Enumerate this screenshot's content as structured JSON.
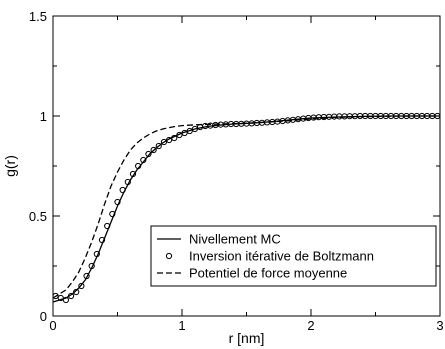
{
  "chart_data": {
    "type": "line",
    "xlabel": "r  [nm]",
    "ylabel": "g(r)",
    "xlim": [
      0,
      3
    ],
    "ylim": [
      0,
      1.5
    ],
    "x_ticks": [
      "0",
      "1",
      "2",
      "3"
    ],
    "y_ticks": [
      "0",
      "0.5",
      "1",
      "1.5"
    ],
    "grid": false,
    "legend_position": "lower-right",
    "series": [
      {
        "name": "Nivellement MC",
        "style": "solid",
        "x": [
          0,
          0.05,
          0.1,
          0.15,
          0.2,
          0.25,
          0.3,
          0.35,
          0.4,
          0.45,
          0.5,
          0.55,
          0.6,
          0.65,
          0.7,
          0.75,
          0.8,
          0.85,
          0.9,
          0.95,
          1.0,
          1.05,
          1.1,
          1.2,
          1.3,
          1.4,
          1.5,
          1.6,
          1.7,
          1.8,
          1.9,
          2.0,
          2.2,
          2.4,
          2.6,
          2.8,
          3.0
        ],
        "y": [
          0.07,
          0.08,
          0.09,
          0.11,
          0.14,
          0.18,
          0.24,
          0.31,
          0.39,
          0.47,
          0.55,
          0.62,
          0.68,
          0.73,
          0.77,
          0.81,
          0.84,
          0.865,
          0.885,
          0.9,
          0.915,
          0.925,
          0.935,
          0.948,
          0.955,
          0.96,
          0.963,
          0.967,
          0.972,
          0.978,
          0.984,
          0.99,
          0.995,
          0.998,
          1.0,
          1.0,
          1.0
        ]
      },
      {
        "name": "Inversion itérative de Boltzmann",
        "style": "circles",
        "x": [
          0.02,
          0.06,
          0.1,
          0.14,
          0.18,
          0.22,
          0.26,
          0.3,
          0.34,
          0.38,
          0.42,
          0.46,
          0.5,
          0.54,
          0.58,
          0.62,
          0.66,
          0.7,
          0.74,
          0.78,
          0.82,
          0.86,
          0.9,
          0.94,
          0.98,
          1.02,
          1.06,
          1.1,
          1.14,
          1.18,
          1.22,
          1.26,
          1.3,
          1.34,
          1.38,
          1.42,
          1.46,
          1.5,
          1.54,
          1.58,
          1.62,
          1.66,
          1.7,
          1.74,
          1.78,
          1.82,
          1.86,
          1.9,
          1.94,
          1.98,
          2.02,
          2.06,
          2.1,
          2.14,
          2.18,
          2.22,
          2.26,
          2.3,
          2.34,
          2.38,
          2.42,
          2.46,
          2.5,
          2.54,
          2.58,
          2.62,
          2.66,
          2.7,
          2.74,
          2.78,
          2.82,
          2.86,
          2.9,
          2.94,
          2.98
        ],
        "y": [
          0.1,
          0.09,
          0.08,
          0.1,
          0.12,
          0.15,
          0.2,
          0.25,
          0.31,
          0.38,
          0.45,
          0.51,
          0.57,
          0.63,
          0.67,
          0.71,
          0.75,
          0.78,
          0.81,
          0.83,
          0.85,
          0.87,
          0.88,
          0.89,
          0.905,
          0.915,
          0.925,
          0.935,
          0.945,
          0.95,
          0.952,
          0.955,
          0.957,
          0.958,
          0.96,
          0.96,
          0.961,
          0.962,
          0.963,
          0.965,
          0.966,
          0.968,
          0.97,
          0.972,
          0.975,
          0.978,
          0.981,
          0.984,
          0.987,
          0.99,
          0.992,
          0.994,
          0.995,
          0.996,
          0.997,
          0.998,
          0.998,
          0.999,
          0.999,
          1.0,
          1.0,
          1.0,
          1.0,
          1.0,
          1.0,
          1.0,
          1.0,
          1.0,
          1.0,
          1.0,
          1.0,
          1.0,
          1.0,
          1.0,
          1.0
        ]
      },
      {
        "name": "Potentiel de force moyenne",
        "style": "dashed",
        "x": [
          0,
          0.05,
          0.1,
          0.15,
          0.2,
          0.25,
          0.3,
          0.35,
          0.4,
          0.45,
          0.5,
          0.55,
          0.6,
          0.65,
          0.7,
          0.75,
          0.8,
          0.85,
          0.9,
          0.95,
          1.0,
          1.1,
          1.2,
          1.3,
          1.4,
          1.5,
          1.6,
          1.8,
          2.0,
          2.2,
          2.4,
          2.6,
          2.8,
          3.0
        ],
        "y": [
          0.09,
          0.11,
          0.13,
          0.17,
          0.22,
          0.29,
          0.37,
          0.46,
          0.56,
          0.65,
          0.72,
          0.78,
          0.83,
          0.865,
          0.89,
          0.91,
          0.925,
          0.935,
          0.942,
          0.948,
          0.952,
          0.956,
          0.958,
          0.96,
          0.962,
          0.964,
          0.967,
          0.975,
          0.985,
          0.993,
          0.997,
          0.999,
          1.0,
          1.0
        ]
      }
    ]
  }
}
